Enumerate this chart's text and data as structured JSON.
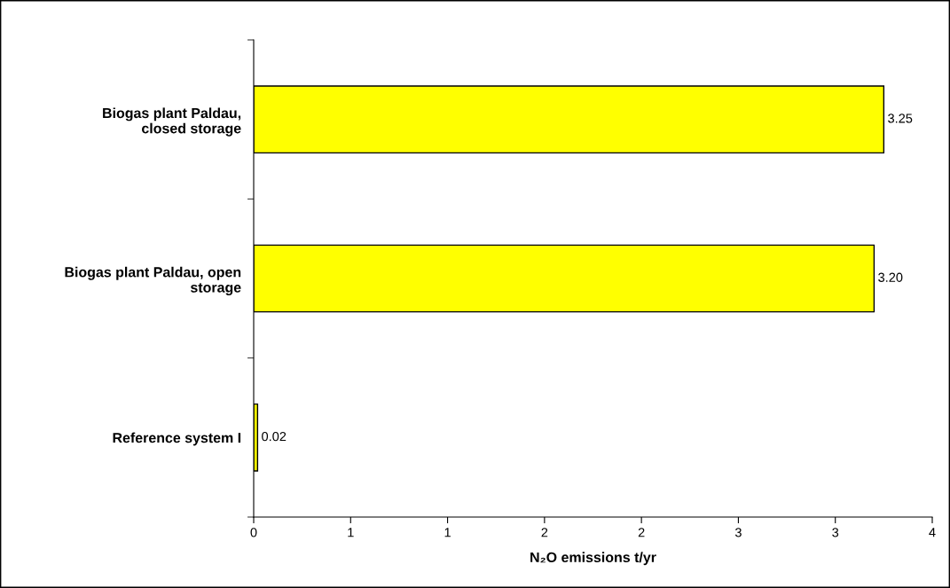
{
  "chart_data": {
    "type": "bar",
    "orientation": "horizontal",
    "categories": [
      "Biogas plant Paldau,\nclosed storage",
      "Biogas plant Paldau, open\nstorage",
      "Reference system I"
    ],
    "values": [
      3.25,
      3.2,
      0.02
    ],
    "value_labels": [
      "3.25",
      "3.20",
      "0.02"
    ],
    "color": "#ffff00",
    "xlabel": "N₂O emissions t/yr",
    "xlim": [
      0,
      3.5
    ],
    "xticks": [
      0,
      {
        "value": 0.5,
        "label": "1"
      },
      1,
      {
        "value": 1.5,
        "label": "2"
      },
      2,
      {
        "value": 2.5,
        "label": "3"
      },
      3,
      {
        "value": 3.5,
        "label": "4"
      }
    ],
    "grid": false,
    "legend": false
  }
}
